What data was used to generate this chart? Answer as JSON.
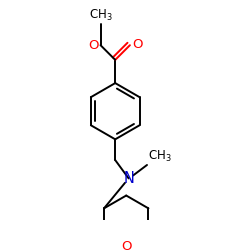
{
  "background_color": "#ffffff",
  "bond_color": "#000000",
  "O_color": "#ff0000",
  "N_color": "#0000cc",
  "font_size": 8.5,
  "figsize": [
    2.5,
    2.5
  ],
  "dpi": 100,
  "xlim": [
    0.1,
    0.9
  ],
  "ylim": [
    0.05,
    0.95
  ]
}
